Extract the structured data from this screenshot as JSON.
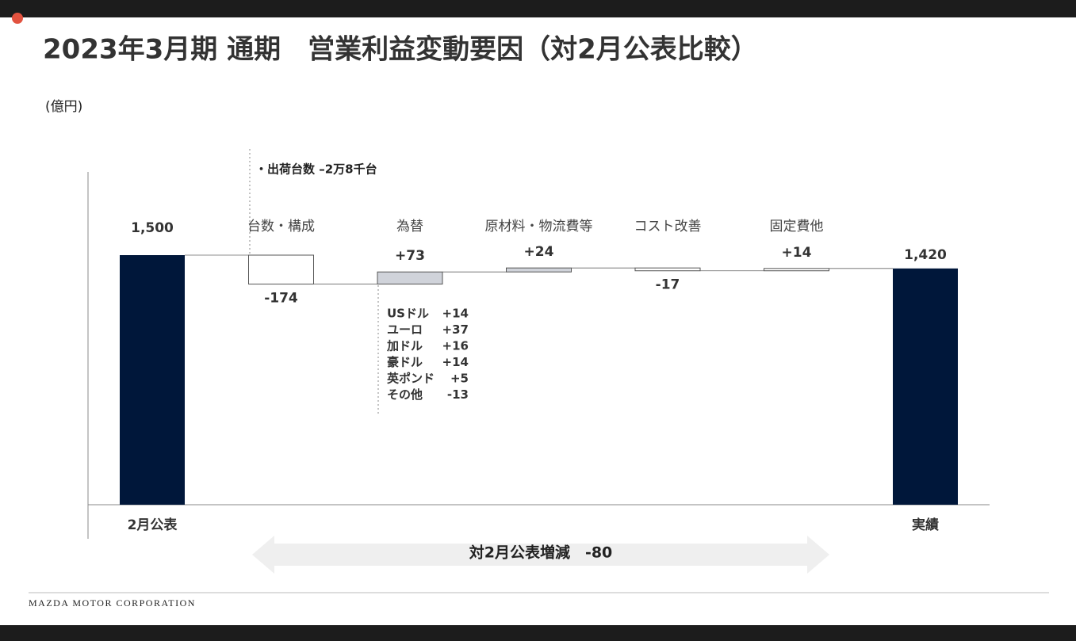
{
  "chart_data": {
    "type": "waterfall",
    "title": "2023年3月期 通期　営業利益変動要因（対2月公表比較）",
    "unit_label": "(億円)",
    "categories": [
      "2月公表",
      "台数・構成",
      "為替",
      "原材料・物流費等",
      "コスト改善",
      "固定費他",
      "実績"
    ],
    "values": [
      1500,
      -174,
      73,
      24,
      -17,
      14,
      1420
    ],
    "value_labels": [
      "1,500",
      "-174",
      "+73",
      "+24",
      "-17",
      "+14",
      "1,420"
    ],
    "colors": [
      "#00173a",
      "#ffffff",
      "#d0d3da",
      "#d0d3da",
      "#ffffff",
      "#ffffff",
      "#00173a"
    ],
    "ylim": [
      0,
      1500
    ],
    "annotation": "・出荷台数 –2万8千台",
    "fx_breakdown": [
      {
        "name": "USドル",
        "value": "+14"
      },
      {
        "name": "ユーロ",
        "value": "+37"
      },
      {
        "name": "加ドル",
        "value": "+16"
      },
      {
        "name": "豪ドル",
        "value": "+14"
      },
      {
        "name": "英ポンド",
        "value": "+5"
      },
      {
        "name": "その他",
        "value": "-13"
      }
    ],
    "summary": "対2月公表増減　-80",
    "footer": "MAZDA MOTOR CORPORATION"
  }
}
